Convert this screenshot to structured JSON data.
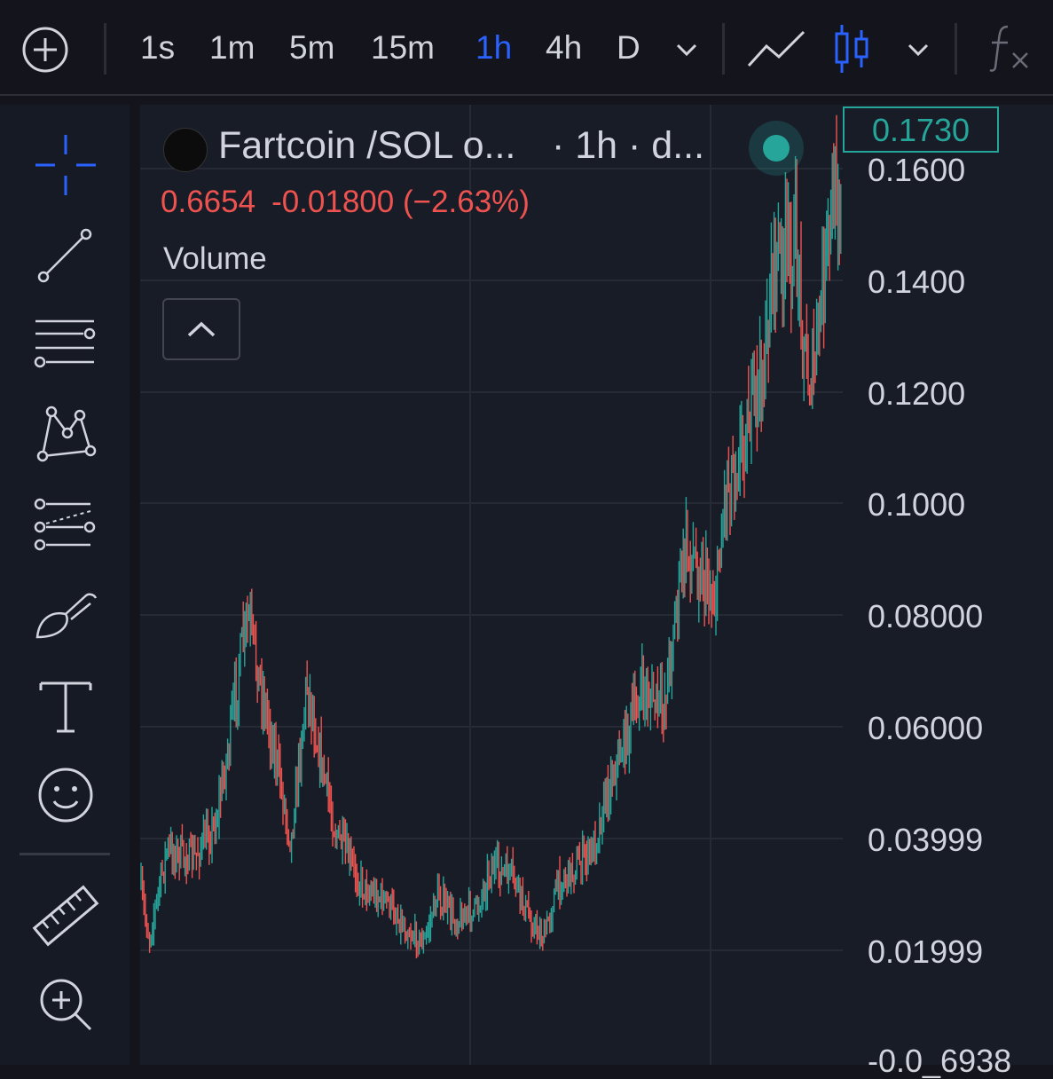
{
  "toolbar": {
    "add_icon": "plus-circle-icon",
    "timeframes": [
      "1s",
      "1m",
      "5m",
      "15m",
      "1h",
      "4h",
      "D"
    ],
    "active_timeframe": "1h",
    "timeframe_menu_icon": "chevron-down-icon",
    "chart_type_icons": [
      "line-chart-icon",
      "candles-icon"
    ],
    "chart_type_menu_icon": "chevron-down-icon",
    "indicators_icon": "fx-icon"
  },
  "left_tools": [
    "crosshair-icon",
    "trend-line-icon",
    "fib-lines-icon",
    "pattern-icon",
    "forecast-icon",
    "brush-icon",
    "text-icon",
    "emoji-icon",
    "ruler-icon",
    "zoom-in-icon"
  ],
  "legend": {
    "symbol": "Fartcoin /SOL o...",
    "interval": "· 1h · d...",
    "close": "0.6654",
    "change": "-0.01800 (−2.63%)",
    "volume_label": "Volume",
    "collapse_icon": "chevron-up-icon"
  },
  "price_scale": {
    "last_price": "0.1730",
    "labels": [
      "0.1600",
      "0.1400",
      "0.1200",
      "0.1000",
      "0.08000",
      "0.06000",
      "0.03999",
      "0.01999",
      "-0.0_6938"
    ]
  },
  "colors": {
    "up": "#26a69a",
    "down": "#ef5350",
    "accent": "#2962ff",
    "background": "#181c27"
  }
}
